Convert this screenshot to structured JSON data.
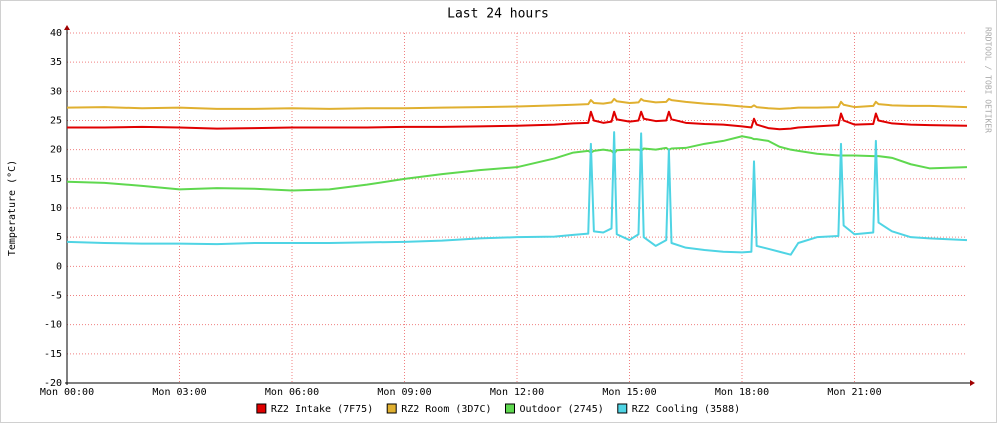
{
  "chart_data": {
    "type": "line",
    "title": "Last 24 hours",
    "y_label": "Temperature (°C)",
    "watermark": "RRDTOOL / TOBI OETIKER",
    "x": [
      0,
      1,
      2,
      3,
      4,
      5,
      6,
      7,
      8,
      9,
      10,
      11,
      12,
      13,
      13.5,
      13.9,
      13.97,
      14.05,
      14.3,
      14.52,
      14.59,
      14.66,
      15.0,
      15.24,
      15.31,
      15.38,
      15.7,
      15.98,
      16.05,
      16.12,
      16.5,
      17,
      17.5,
      18,
      18.25,
      18.32,
      18.39,
      18.7,
      19,
      19.3,
      19.5,
      20,
      20.57,
      20.64,
      20.71,
      21,
      21.5,
      21.57,
      21.64,
      22,
      22.5,
      23,
      24
    ],
    "xlim": [
      0,
      24
    ],
    "xticks": [
      {
        "value": 0,
        "label": "Mon 00:00"
      },
      {
        "value": 3,
        "label": "Mon 03:00"
      },
      {
        "value": 6,
        "label": "Mon 06:00"
      },
      {
        "value": 9,
        "label": "Mon 09:00"
      },
      {
        "value": 12,
        "label": "Mon 12:00"
      },
      {
        "value": 15,
        "label": "Mon 15:00"
      },
      {
        "value": 18,
        "label": "Mon 18:00"
      },
      {
        "value": 21,
        "label": "Mon 21:00"
      }
    ],
    "ylim": [
      -20,
      40
    ],
    "yticks": [
      -20,
      -15,
      -10,
      -5,
      0,
      5,
      10,
      15,
      20,
      25,
      30,
      35,
      40
    ],
    "grid": true,
    "series": [
      {
        "name": "RZ2 Intake (7F75)",
        "color": "#e00000",
        "values": [
          23.8,
          23.8,
          23.9,
          23.8,
          23.6,
          23.7,
          23.8,
          23.8,
          23.8,
          23.9,
          23.9,
          24.0,
          24.1,
          24.3,
          24.5,
          24.6,
          26.5,
          25.0,
          24.6,
          24.8,
          26.5,
          25.2,
          24.8,
          25.0,
          26.5,
          25.3,
          24.9,
          25.0,
          26.5,
          25.2,
          24.6,
          24.4,
          24.3,
          24.0,
          23.8,
          25.3,
          24.3,
          23.7,
          23.5,
          23.6,
          23.8,
          24.0,
          24.2,
          26.2,
          25.0,
          24.3,
          24.4,
          26.2,
          25.0,
          24.5,
          24.3,
          24.2,
          24.1
        ]
      },
      {
        "name": "RZ2 Room (3D7C)",
        "color": "#e0b030",
        "values": [
          27.2,
          27.3,
          27.1,
          27.2,
          27.0,
          27.0,
          27.1,
          27.0,
          27.1,
          27.1,
          27.2,
          27.3,
          27.4,
          27.6,
          27.7,
          27.8,
          28.5,
          28.0,
          27.9,
          28.1,
          28.7,
          28.3,
          28.0,
          28.1,
          28.7,
          28.4,
          28.1,
          28.2,
          28.7,
          28.5,
          28.2,
          27.9,
          27.7,
          27.4,
          27.3,
          27.6,
          27.3,
          27.1,
          27.0,
          27.1,
          27.2,
          27.2,
          27.3,
          28.2,
          27.7,
          27.3,
          27.5,
          28.2,
          27.8,
          27.6,
          27.5,
          27.5,
          27.3
        ]
      },
      {
        "name": "Outdoor (2745)",
        "color": "#5fd84f",
        "values": [
          14.5,
          14.3,
          13.8,
          13.2,
          13.4,
          13.3,
          13.0,
          13.2,
          14.0,
          15.0,
          15.8,
          16.5,
          17.0,
          18.5,
          19.5,
          19.8,
          19.5,
          19.8,
          20.0,
          19.8,
          19.3,
          19.9,
          20.0,
          20.0,
          19.8,
          20.2,
          20.0,
          20.3,
          20.0,
          20.2,
          20.3,
          21.0,
          21.5,
          22.3,
          22.0,
          21.8,
          21.8,
          21.5,
          20.5,
          20.0,
          19.8,
          19.3,
          19.0,
          19.0,
          19.0,
          19.0,
          18.9,
          18.9,
          18.9,
          18.6,
          17.5,
          16.8,
          17.0
        ]
      },
      {
        "name": "RZ2 Cooling (3588)",
        "color": "#4fd4e4",
        "values": [
          4.2,
          4.0,
          3.9,
          3.9,
          3.8,
          4.0,
          4.0,
          4.0,
          4.1,
          4.2,
          4.4,
          4.8,
          5.0,
          5.1,
          5.4,
          5.6,
          21,
          6.0,
          5.8,
          6.5,
          23,
          5.5,
          4.5,
          5.5,
          22.8,
          5.0,
          3.5,
          4.5,
          20,
          4.0,
          3.2,
          2.8,
          2.5,
          2.4,
          2.5,
          18,
          3.5,
          3.0,
          2.5,
          2.0,
          4.0,
          5.0,
          5.2,
          21,
          7.0,
          5.5,
          5.8,
          21.5,
          7.5,
          6.0,
          5.0,
          4.8,
          4.5
        ]
      }
    ]
  }
}
